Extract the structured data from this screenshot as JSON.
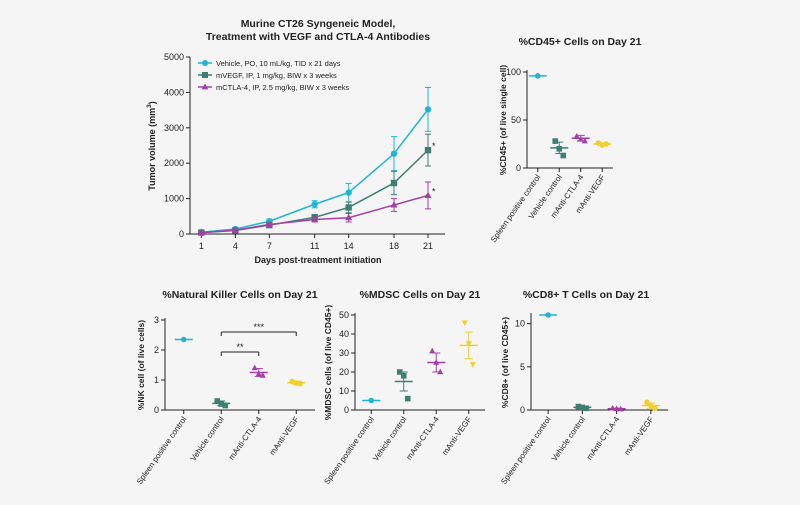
{
  "colors": {
    "cyan": "#1fb6d4",
    "teal": "#3d7f71",
    "purple": "#a340a3",
    "yellow": "#f2cf2e",
    "axis": "#222222"
  },
  "chart_data": [
    {
      "id": "tumor",
      "type": "line",
      "title": "Murine CT26 Syngeneic Model,",
      "subtitle": "Treatment with VEGF and CTLA-4 Antibodies",
      "xlabel": "Days post-treatment initiation",
      "ylabel_main": "Tumor volume (mm",
      "ylabel_sup": "3",
      "ylabel_end": ")",
      "xlim": [
        0,
        22.5
      ],
      "ylim": [
        0,
        5000
      ],
      "yticks": [
        0,
        1000,
        2000,
        3000,
        4000,
        5000
      ],
      "x": [
        1,
        4,
        7,
        11,
        14,
        18,
        21
      ],
      "grid": false,
      "legend": "top-left",
      "series": [
        {
          "name": "Vehicle, PO, 10 mL/kg, TID x 21 days",
          "color": "cyan",
          "marker": "circle",
          "y": [
            50,
            140,
            360,
            840,
            1170,
            2270,
            3520
          ],
          "err": [
            15,
            30,
            60,
            100,
            260,
            480,
            620
          ]
        },
        {
          "name": "mVEGF, IP, 1 mg/kg, BIW x 3 weeks",
          "color": "teal",
          "marker": "square",
          "y": [
            40,
            100,
            250,
            470,
            750,
            1440,
            2370
          ],
          "err": [
            10,
            20,
            40,
            80,
            150,
            330,
            450
          ]
        },
        {
          "name": "mCTLA-4, IP, 2.5 mg/kg, BIW x 3 weeks",
          "color": "purple",
          "marker": "triangle",
          "y": [
            40,
            110,
            270,
            410,
            460,
            820,
            1090
          ],
          "err": [
            10,
            20,
            40,
            70,
            120,
            180,
            380
          ]
        }
      ],
      "annotations": [
        "*",
        "*"
      ]
    },
    {
      "id": "cd45",
      "type": "scatter",
      "title": "%CD45+ Cells on Day 21",
      "ylabel": "%CD45+ (of live single cell)",
      "ylim": [
        0,
        100
      ],
      "yticks": [
        0,
        50,
        100
      ],
      "categories": [
        "Spleen positive control",
        "Vehicle control",
        "mAnti-CTLA-4",
        "mAnti-VEGF"
      ],
      "groups": [
        {
          "color": "cyan",
          "marker": "circle",
          "points": [
            96
          ],
          "mean": 96,
          "err": 0
        },
        {
          "color": "teal",
          "marker": "square",
          "points": [
            28,
            20,
            13
          ],
          "mean": 21,
          "err": 6
        },
        {
          "color": "purple",
          "marker": "triangle",
          "points": [
            33,
            30,
            28
          ],
          "mean": 31,
          "err": 3
        },
        {
          "color": "yellow",
          "marker": "circle",
          "points": [
            26,
            24,
            25
          ],
          "mean": 25,
          "err": 1
        }
      ]
    },
    {
      "id": "nk",
      "type": "scatter",
      "title": "%Natural Killer Cells on Day 21",
      "ylabel": "%NK cell (of live cells)",
      "ylim": [
        0,
        3
      ],
      "yticks": [
        0,
        1,
        2,
        3
      ],
      "categories": [
        "Spleen positive control",
        "Vehicle control",
        "mAnti-CTLA-4",
        "mAnti-VEGF"
      ],
      "groups": [
        {
          "color": "cyan",
          "marker": "circle",
          "points": [
            2.35
          ],
          "mean": 2.35,
          "err": 0
        },
        {
          "color": "teal",
          "marker": "square",
          "points": [
            0.3,
            0.2,
            0.15
          ],
          "mean": 0.22,
          "err": 0.08
        },
        {
          "color": "purple",
          "marker": "triangle",
          "points": [
            1.4,
            1.2,
            1.15
          ],
          "mean": 1.25,
          "err": 0.13
        },
        {
          "color": "yellow",
          "marker": "circle",
          "points": [
            0.95,
            0.9,
            0.88
          ],
          "mean": 0.91,
          "err": 0.05
        }
      ],
      "significance": [
        {
          "from": 1,
          "to": 2,
          "label": "**"
        },
        {
          "from": 1,
          "to": 3,
          "label": "***"
        }
      ]
    },
    {
      "id": "mdsc",
      "type": "scatter",
      "title": "%MDSC Cells on Day 21",
      "ylabel": "%MDSC cells (of live CD45+)",
      "ylim": [
        0,
        50
      ],
      "yticks": [
        0,
        10,
        20,
        30,
        40,
        50
      ],
      "categories": [
        "Spleen positive control",
        "Vehicle control",
        "mAnti-CTLA-4",
        "mAnti-VEGF"
      ],
      "groups": [
        {
          "color": "cyan",
          "marker": "circle",
          "points": [
            5
          ],
          "mean": 5,
          "err": 0
        },
        {
          "color": "teal",
          "marker": "square",
          "points": [
            20,
            18,
            6
          ],
          "mean": 15,
          "err": 5
        },
        {
          "color": "purple",
          "marker": "triangle",
          "points": [
            31,
            25,
            20
          ],
          "mean": 25,
          "err": 5
        },
        {
          "color": "yellow",
          "marker": "triangle-down",
          "points": [
            46,
            35,
            24
          ],
          "mean": 34,
          "err": 7
        }
      ]
    },
    {
      "id": "cd8",
      "type": "scatter",
      "title": "%CD8+ T Cells on Day 21",
      "ylabel": "%CD8+ (of live CD45+)",
      "ylim": [
        0,
        11
      ],
      "yticks": [
        0,
        5,
        10
      ],
      "categories": [
        "Spleen positive control",
        "Vehicle control",
        "mAnti-CTLA-4",
        "mAnti-VEGF"
      ],
      "groups": [
        {
          "color": "cyan",
          "marker": "circle",
          "points": [
            11
          ],
          "mean": 11,
          "err": 0
        },
        {
          "color": "teal",
          "marker": "square",
          "points": [
            0.4,
            0.3,
            0.2
          ],
          "mean": 0.3,
          "err": 0.1
        },
        {
          "color": "purple",
          "marker": "triangle",
          "points": [
            0.2,
            0.15,
            0.1
          ],
          "mean": 0.15,
          "err": 0.05
        },
        {
          "color": "yellow",
          "marker": "circle",
          "points": [
            0.9,
            0.5,
            0.2
          ],
          "mean": 0.5,
          "err": 0.3
        }
      ]
    }
  ]
}
